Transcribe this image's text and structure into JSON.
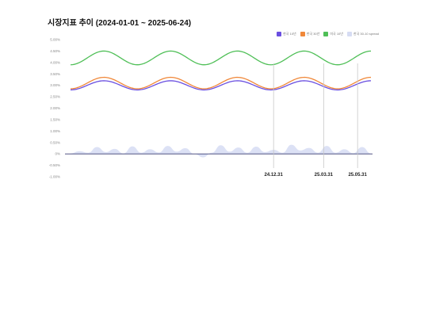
{
  "page": {
    "title": "시장지표 추이 (2024-01-01 ~ 2025-06-24)"
  },
  "chart_data": {
    "type": "line",
    "title": "시장지표 추이 (2024-01-01 ~ 2025-06-24)",
    "x_range": [
      "2024-01-01",
      "2025-06-24"
    ],
    "y_tick_labels": [
      "-1.00%",
      "-0.50%",
      "0%",
      "0.50%",
      "1.00%",
      "1.50%",
      "2.00%",
      "2.50%",
      "3.00%",
      "3.50%",
      "4.00%",
      "4.50%",
      "5.00%"
    ],
    "ylim": [
      -1.0,
      5.0
    ],
    "grid": false,
    "legend_position": "top-right",
    "series": [
      {
        "name": "한국 10년",
        "type": "line",
        "color": "#6a4fe0",
        "mean": 3.0,
        "amplitude": 0.2,
        "cycles": 4.5
      },
      {
        "name": "한국 30년",
        "type": "line",
        "color": "#f0883a",
        "mean": 3.1,
        "amplitude": 0.25,
        "cycles": 4.5
      },
      {
        "name": "미국 10년",
        "type": "line",
        "color": "#4fbf57",
        "mean": 4.2,
        "amplitude": 0.3,
        "cycles": 4.5
      },
      {
        "name": "한국 30-10 spread",
        "type": "area",
        "color": "#d6dcf3",
        "values": [
          0.02,
          0.12,
          0.05,
          0.3,
          0.08,
          0.22,
          0.02,
          0.33,
          0.05,
          0.2,
          0.06,
          0.35,
          0.1,
          0.25,
          0.0,
          -0.15,
          0.05,
          0.38,
          0.1,
          0.28,
          0.05,
          0.32,
          0.08,
          0.18,
          0.05,
          0.4,
          0.15,
          0.26,
          0.05,
          0.35,
          0.05,
          0.2,
          0.03,
          0.3,
          0.02
        ]
      }
    ],
    "markers": [
      {
        "label": "24.12.31",
        "date": "2024-12-31"
      },
      {
        "label": "25.03.31",
        "date": "2025-03-31"
      },
      {
        "label": "25.05.31",
        "date": "2025-05-31"
      }
    ]
  }
}
